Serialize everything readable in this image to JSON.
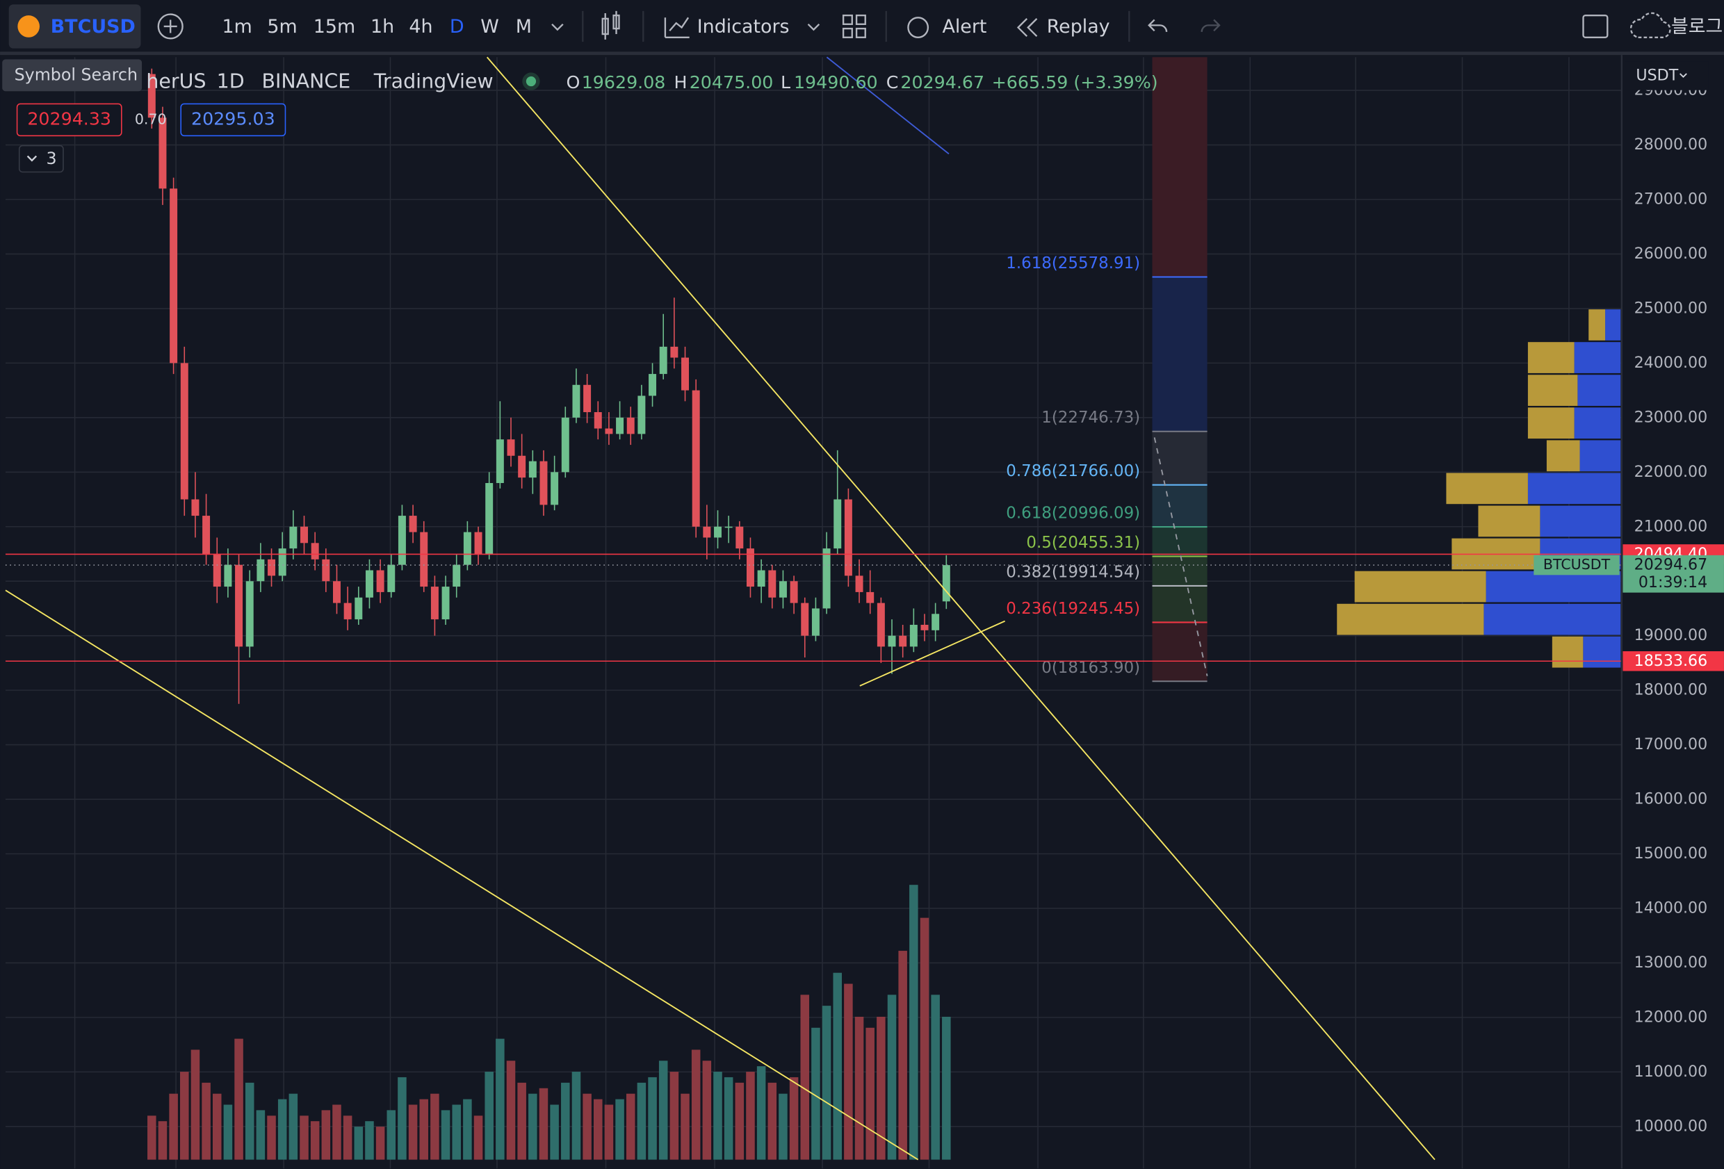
{
  "toolbar": {
    "symbol": "BTCUSD",
    "intervals": [
      "1m",
      "5m",
      "15m",
      "1h",
      "4h",
      "D",
      "W",
      "M"
    ],
    "active_interval": 5,
    "indicators": "Indicators",
    "alert": "Alert",
    "replay": "Replay",
    "blog": "블로그"
  },
  "tooltip": "Symbol Search",
  "legend": {
    "symbol": "herUS",
    "interval": "1D",
    "exchange": "BINANCE",
    "source": "TradingView",
    "open_label": "O",
    "open": "19629.08",
    "high_label": "H",
    "high": "20475.00",
    "low_label": "L",
    "low": "19490.60",
    "close_label": "C",
    "close": "20294.67",
    "change": "+665.59 (+3.39%)"
  },
  "order": {
    "sell": "20294.33",
    "spread": "0.70",
    "buy": "20295.03"
  },
  "indicator_count": "3",
  "price_axis": {
    "currency": "USDT",
    "ylim": [
      9230,
      29610
    ],
    "yticks": [
      {
        "value": 10000,
        "label": "10000.00"
      },
      {
        "value": 11000,
        "label": "11000.00"
      },
      {
        "value": 12000,
        "label": "12000.00"
      },
      {
        "value": 13000,
        "label": "13000.00"
      },
      {
        "value": 14000,
        "label": "14000.00"
      },
      {
        "value": 15000,
        "label": "15000.00"
      },
      {
        "value": 16000,
        "label": "16000.00"
      },
      {
        "value": 17000,
        "label": "17000.00"
      },
      {
        "value": 18000,
        "label": "18000.00"
      },
      {
        "value": 19000,
        "label": "19000.00"
      },
      {
        "value": 20000,
        "label": "20000.00"
      },
      {
        "value": 21000,
        "label": "21000.00"
      },
      {
        "value": 22000,
        "label": "22000.00"
      },
      {
        "value": 23000,
        "label": "23000.00"
      },
      {
        "value": 24000,
        "label": "24000.00"
      },
      {
        "value": 25000,
        "label": "25000.00"
      },
      {
        "value": 26000,
        "label": "26000.00"
      },
      {
        "value": 27000,
        "label": "27000.00"
      },
      {
        "value": 28000,
        "label": "28000.00"
      },
      {
        "value": 29000,
        "label": "29000.00"
      }
    ]
  },
  "price_tags": [
    {
      "value": 20494.4,
      "label": "20494.40",
      "color": "#f23645"
    },
    {
      "value": 20294.67,
      "label": "20294.67",
      "countdown": "01:39:14",
      "symbol": "BTCUSDT",
      "color": "#5fae86"
    },
    {
      "value": 18533.66,
      "label": "18533.66",
      "color": "#f23645"
    }
  ],
  "fib": [
    {
      "label": "1.618(25578.91)",
      "price": 25578.91,
      "color": "#3d6bff"
    },
    {
      "label": "1(22746.73)",
      "price": 22746.73,
      "color": "#787b86"
    },
    {
      "label": "0.786(21766.00)",
      "price": 21766.0,
      "color": "#64b5f6"
    },
    {
      "label": "0.618(20996.09)",
      "price": 20996.09,
      "color": "#3f9f7f"
    },
    {
      "label": "0.5(20455.31)",
      "price": 20455.31,
      "color": "#8bc34a"
    },
    {
      "label": "0.382(19914.54)",
      "price": 19914.54,
      "color": "#b2b5be"
    },
    {
      "label": "0.236(19245.45)",
      "price": 19245.45,
      "color": "#f23645"
    },
    {
      "label": "0(18163.90)",
      "price": 18163.9,
      "color": "#787b86"
    }
  ],
  "candles": {
    "up_color": "#6fbf8e",
    "down_color": "#e0525a",
    "ohlc": [
      [
        29300,
        29400,
        28300,
        28500
      ],
      [
        28500,
        28700,
        26900,
        27200
      ],
      [
        27200,
        27400,
        23800,
        24000
      ],
      [
        24000,
        24300,
        21200,
        21500
      ],
      [
        21500,
        22000,
        20800,
        21200
      ],
      [
        21200,
        21600,
        20300,
        20500
      ],
      [
        20500,
        20800,
        19600,
        19900
      ],
      [
        19900,
        20600,
        19700,
        20300
      ],
      [
        20300,
        20500,
        17750,
        18800
      ],
      [
        18800,
        20200,
        18600,
        20000
      ],
      [
        20000,
        20700,
        19800,
        20400
      ],
      [
        20400,
        20600,
        19900,
        20100
      ],
      [
        20100,
        20900,
        20000,
        20600
      ],
      [
        20600,
        21300,
        20400,
        21000
      ],
      [
        21000,
        21200,
        20500,
        20700
      ],
      [
        20700,
        20900,
        20200,
        20400
      ],
      [
        20400,
        20600,
        19800,
        20000
      ],
      [
        20000,
        20300,
        19400,
        19600
      ],
      [
        19600,
        19900,
        19100,
        19300
      ],
      [
        19300,
        19900,
        19200,
        19700
      ],
      [
        19700,
        20400,
        19500,
        20200
      ],
      [
        20200,
        20400,
        19600,
        19800
      ],
      [
        19800,
        20500,
        19700,
        20300
      ],
      [
        20300,
        21400,
        20200,
        21200
      ],
      [
        21200,
        21400,
        20700,
        20900
      ],
      [
        20900,
        21100,
        19800,
        19900
      ],
      [
        19900,
        20100,
        19000,
        19300
      ],
      [
        19300,
        20100,
        19200,
        19900
      ],
      [
        19900,
        20500,
        19700,
        20300
      ],
      [
        20300,
        21100,
        20200,
        20900
      ],
      [
        20900,
        21000,
        20300,
        20500
      ],
      [
        20500,
        22000,
        20400,
        21800
      ],
      [
        21800,
        23300,
        21700,
        22600
      ],
      [
        22600,
        23000,
        22100,
        22300
      ],
      [
        22300,
        22700,
        21700,
        21900
      ],
      [
        21900,
        22400,
        21600,
        22200
      ],
      [
        22200,
        22400,
        21200,
        21400
      ],
      [
        21400,
        22300,
        21300,
        22000
      ],
      [
        22000,
        23200,
        21900,
        23000
      ],
      [
        23000,
        23900,
        22900,
        23600
      ],
      [
        23600,
        23800,
        22900,
        23100
      ],
      [
        23100,
        23300,
        22600,
        22800
      ],
      [
        22800,
        23100,
        22500,
        22700
      ],
      [
        22700,
        23300,
        22600,
        23000
      ],
      [
        23000,
        23200,
        22500,
        22700
      ],
      [
        22700,
        23600,
        22600,
        23400
      ],
      [
        23400,
        24000,
        23200,
        23800
      ],
      [
        23800,
        24900,
        23700,
        24300
      ],
      [
        24300,
        25200,
        23900,
        24100
      ],
      [
        24100,
        24300,
        23300,
        23500
      ],
      [
        23500,
        23700,
        20800,
        21000
      ],
      [
        21000,
        21400,
        20400,
        20800
      ],
      [
        20800,
        21300,
        20600,
        21000
      ],
      [
        21000,
        21200,
        20700,
        21000
      ],
      [
        21000,
        21100,
        20400,
        20600
      ],
      [
        20600,
        20800,
        19700,
        19900
      ],
      [
        19900,
        20400,
        19600,
        20200
      ],
      [
        20200,
        20300,
        19500,
        19700
      ],
      [
        19700,
        20200,
        19500,
        20000
      ],
      [
        20000,
        20100,
        19400,
        19600
      ],
      [
        19600,
        19700,
        18600,
        19000
      ],
      [
        19000,
        19700,
        18900,
        19500
      ],
      [
        19500,
        20900,
        19400,
        20600
      ],
      [
        20600,
        22400,
        20500,
        21500
      ],
      [
        21500,
        21700,
        19900,
        20100
      ],
      [
        20100,
        20400,
        19600,
        19800
      ],
      [
        19800,
        20200,
        19400,
        19600
      ],
      [
        19600,
        19700,
        18500,
        18800
      ],
      [
        18800,
        19300,
        18300,
        19000
      ],
      [
        19000,
        19200,
        18600,
        18800
      ],
      [
        18800,
        19500,
        18700,
        19200
      ],
      [
        19200,
        19400,
        18900,
        19100
      ],
      [
        19100,
        19600,
        18900,
        19400
      ],
      [
        19629.08,
        20475,
        19490.6,
        20294.67
      ]
    ]
  },
  "volume": {
    "up_color": "#2f6e6b",
    "down_color": "#8c3a42",
    "values": [
      40,
      35,
      60,
      80,
      100,
      70,
      60,
      50,
      110,
      70,
      45,
      40,
      55,
      60,
      40,
      35,
      45,
      50,
      40,
      30,
      35,
      30,
      45,
      75,
      50,
      55,
      60,
      45,
      50,
      55,
      40,
      80,
      110,
      90,
      70,
      60,
      65,
      50,
      70,
      80,
      60,
      55,
      50,
      55,
      60,
      70,
      75,
      90,
      80,
      60,
      100,
      90,
      80,
      75,
      70,
      80,
      85,
      70,
      60,
      75,
      150,
      120,
      140,
      170,
      160,
      130,
      120,
      130,
      150,
      190,
      250,
      220,
      150,
      130
    ]
  },
  "volume_profile": {
    "up_color": "#b8993a",
    "down_color": "#2f4fd0",
    "rows": [
      {
        "price": 24700,
        "up": 15,
        "down": 14
      },
      {
        "price": 24100,
        "up": 42,
        "down": 42
      },
      {
        "price": 23500,
        "up": 45,
        "down": 39
      },
      {
        "price": 22900,
        "up": 42,
        "down": 42
      },
      {
        "price": 22300,
        "up": 30,
        "down": 37
      },
      {
        "price": 21700,
        "up": 74,
        "down": 84
      },
      {
        "price": 21100,
        "up": 56,
        "down": 73
      },
      {
        "price": 20500,
        "up": 80,
        "down": 73
      },
      {
        "price": 19900,
        "up": 119,
        "down": 122
      },
      {
        "price": 19300,
        "up": 133,
        "down": 124
      },
      {
        "price": 18700,
        "up": 28,
        "down": 34
      }
    ]
  }
}
